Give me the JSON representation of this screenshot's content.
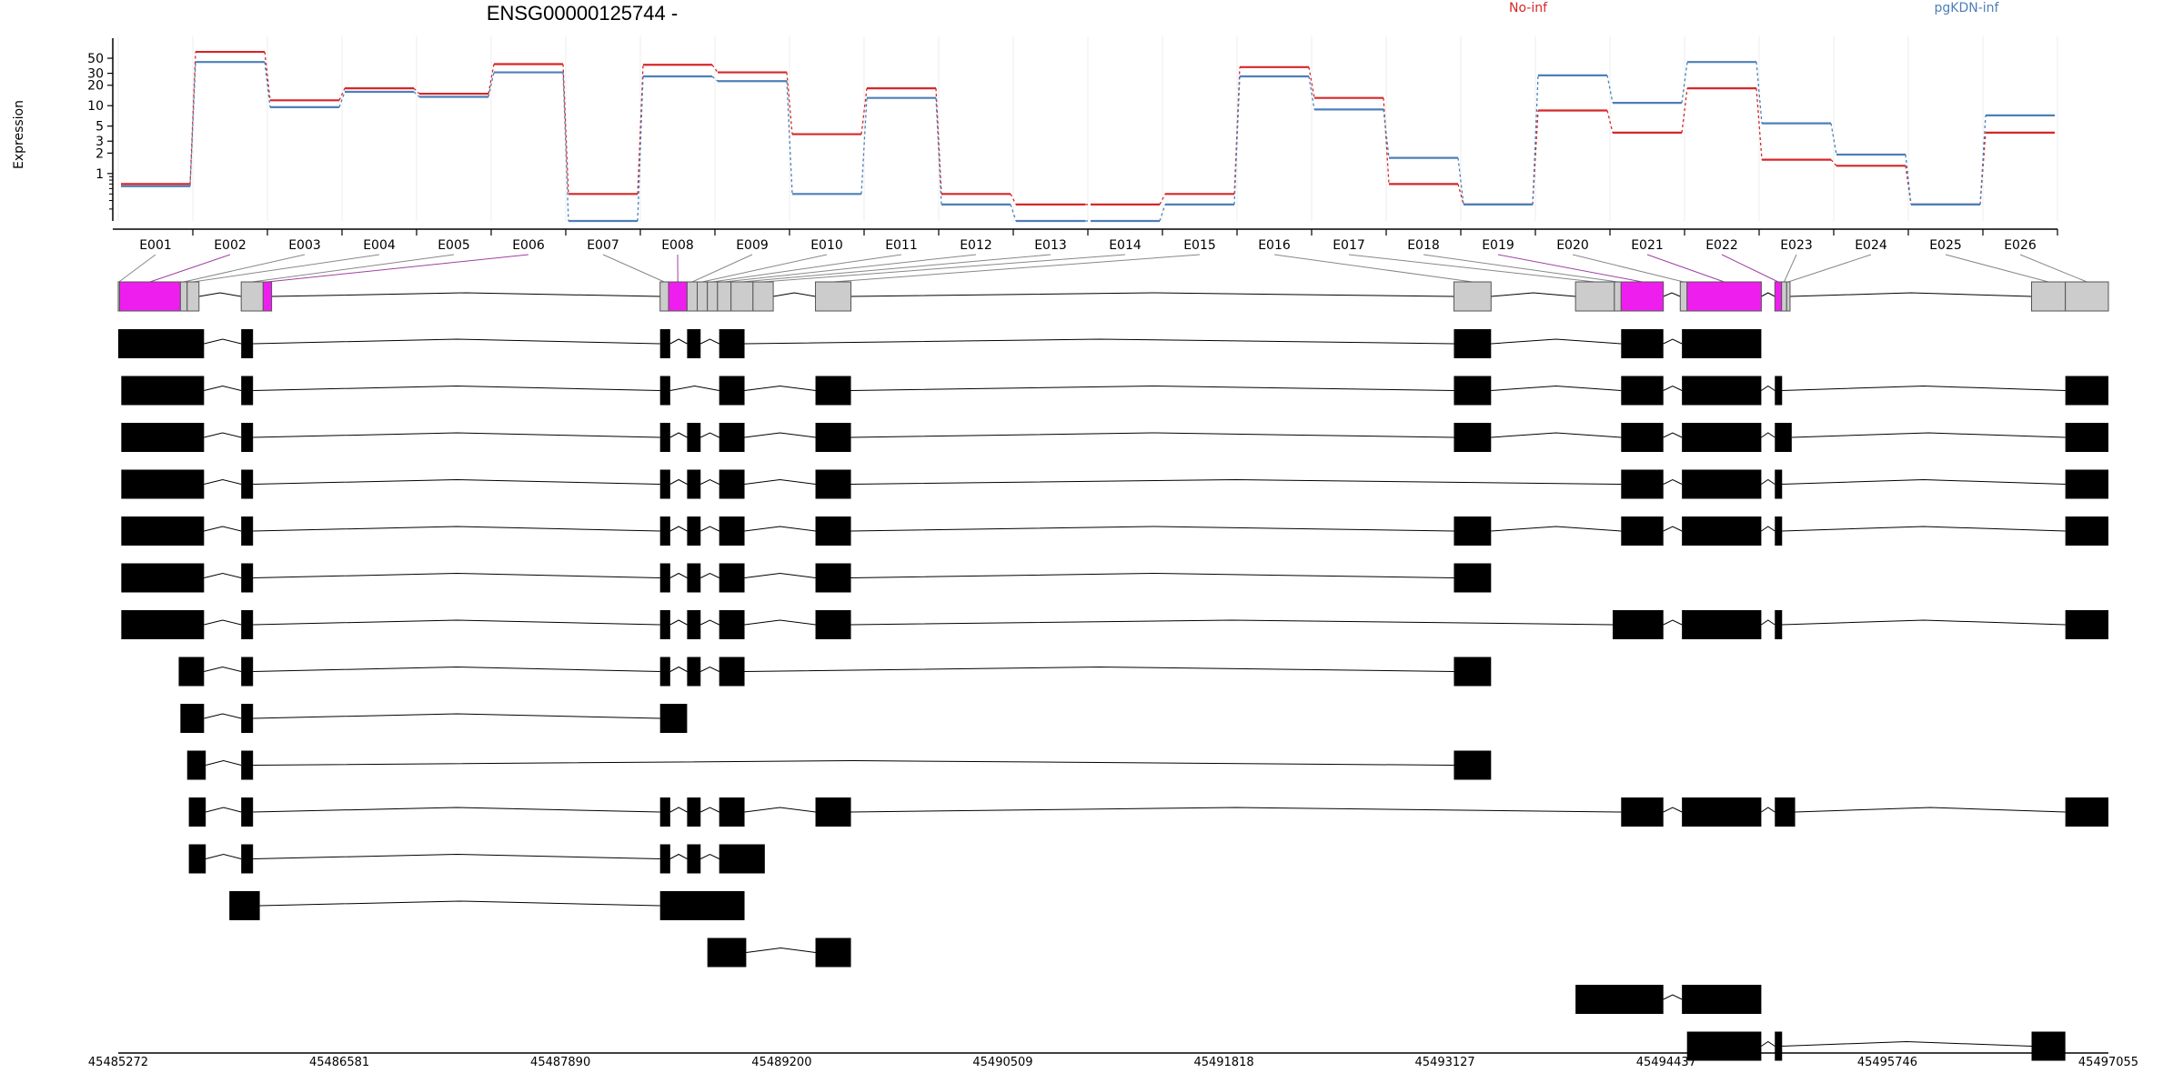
{
  "chart_data": {
    "type": "line",
    "title": "ENSG00000125744 -",
    "ylabel": "Expression",
    "y_scale": "log",
    "y_ticks": [
      "1",
      "2",
      "3",
      "5",
      "10",
      "20",
      "30",
      "50"
    ],
    "grid": true,
    "legend_placement": "top-right",
    "categories": [
      "E001",
      "E002",
      "E003",
      "E004",
      "E005",
      "E006",
      "E007",
      "E008",
      "E009",
      "E010",
      "E011",
      "E012",
      "E013",
      "E014",
      "E015",
      "E016",
      "E017",
      "E018",
      "E019",
      "E020",
      "E021",
      "E022",
      "E023",
      "E024",
      "E025",
      "E026"
    ],
    "series": [
      {
        "name": "No-inf",
        "color": "#d62728",
        "values": [
          0.7,
          62,
          12,
          18,
          15,
          41,
          0.5,
          40,
          31,
          3.8,
          18,
          0.5,
          0.35,
          0.35,
          0.5,
          37,
          13,
          0.7,
          0.35,
          8.5,
          4,
          18,
          1.6,
          1.3,
          0.35,
          4
        ]
      },
      {
        "name": "pgKDN-inf",
        "color": "#4d7fb8",
        "values": [
          0.65,
          44,
          9.5,
          16,
          13.5,
          31,
          0.2,
          27,
          23,
          0.5,
          13,
          0.35,
          0.2,
          0.2,
          0.35,
          27,
          8.8,
          1.7,
          0.35,
          28,
          11,
          44,
          5.5,
          1.9,
          0.35,
          7.2
        ]
      }
    ],
    "genomic_axis": {
      "ticks": [
        "45485272",
        "45486581",
        "45487890",
        "45489200",
        "45490509",
        "45491818",
        "45493127",
        "45494437",
        "45495746",
        "45497055"
      ],
      "range": [
        45485272,
        45497055
      ]
    },
    "exon_segments": [
      {
        "id": "E001",
        "start": 45485272,
        "end": 45485280,
        "highlight": false
      },
      {
        "id": "E002",
        "start": 45485280,
        "end": 45485640,
        "highlight": true
      },
      {
        "id": "E003",
        "start": 45485640,
        "end": 45485680,
        "highlight": false
      },
      {
        "id": "E004",
        "start": 45485680,
        "end": 45485750,
        "highlight": false
      },
      {
        "id": "E005",
        "start": 45486000,
        "end": 45486130,
        "highlight": false
      },
      {
        "id": "E006",
        "start": 45486130,
        "end": 45486180,
        "highlight": true
      },
      {
        "id": "E007",
        "start": 45488480,
        "end": 45488530,
        "highlight": false
      },
      {
        "id": "E008",
        "start": 45488530,
        "end": 45488640,
        "highlight": true
      },
      {
        "id": "E009",
        "start": 45488640,
        "end": 45488700,
        "highlight": false
      },
      {
        "id": "E010",
        "start": 45488700,
        "end": 45488760,
        "highlight": false
      },
      {
        "id": "E011",
        "start": 45488760,
        "end": 45488820,
        "highlight": false
      },
      {
        "id": "E012",
        "start": 45488820,
        "end": 45488900,
        "highlight": false
      },
      {
        "id": "E013",
        "start": 45488900,
        "end": 45489030,
        "highlight": false
      },
      {
        "id": "E014",
        "start": 45489030,
        "end": 45489150,
        "highlight": false
      },
      {
        "id": "E015",
        "start": 45489400,
        "end": 45489610,
        "highlight": false
      },
      {
        "id": "E016",
        "start": 45493180,
        "end": 45493400,
        "highlight": false
      },
      {
        "id": "E017",
        "start": 45493900,
        "end": 45494130,
        "highlight": false
      },
      {
        "id": "E018",
        "start": 45494130,
        "end": 45494170,
        "highlight": false
      },
      {
        "id": "E019",
        "start": 45494170,
        "end": 45494420,
        "highlight": true
      },
      {
        "id": "E020",
        "start": 45494520,
        "end": 45494560,
        "highlight": false
      },
      {
        "id": "E021",
        "start": 45494560,
        "end": 45495000,
        "highlight": true
      },
      {
        "id": "E022",
        "start": 45495080,
        "end": 45495120,
        "highlight": true
      },
      {
        "id": "E023",
        "start": 45495120,
        "end": 45495150,
        "highlight": false
      },
      {
        "id": "E024",
        "start": 45495150,
        "end": 45495170,
        "highlight": false
      },
      {
        "id": "E025",
        "start": 45496600,
        "end": 45496800,
        "highlight": false
      },
      {
        "id": "E026",
        "start": 45496800,
        "end": 45497055,
        "highlight": false
      }
    ],
    "transcripts": [
      [
        [
          45485272,
          45485780
        ],
        [
          45486000,
          45486070
        ],
        [
          45488480,
          45488540
        ],
        [
          45488640,
          45488720
        ],
        [
          45488830,
          45488980
        ],
        [
          45493180,
          45493400
        ],
        [
          45494170,
          45494420
        ],
        [
          45494530,
          45495000
        ]
      ],
      [
        [
          45485290,
          45485780
        ],
        [
          45486000,
          45486070
        ],
        [
          45488480,
          45488540
        ],
        [
          45488830,
          45488980
        ],
        [
          45489400,
          45489610
        ],
        [
          45493180,
          45493400
        ],
        [
          45494170,
          45494420
        ],
        [
          45494530,
          45495000
        ],
        [
          45495080,
          45495120
        ],
        [
          45496800,
          45497055
        ]
      ],
      [
        [
          45485290,
          45485780
        ],
        [
          45486000,
          45486070
        ],
        [
          45488480,
          45488540
        ],
        [
          45488640,
          45488720
        ],
        [
          45488830,
          45488980
        ],
        [
          45489400,
          45489610
        ],
        [
          45493180,
          45493400
        ],
        [
          45494170,
          45494420
        ],
        [
          45494530,
          45495000
        ],
        [
          45495080,
          45495180
        ],
        [
          45496800,
          45497055
        ]
      ],
      [
        [
          45485290,
          45485780
        ],
        [
          45486000,
          45486070
        ],
        [
          45488480,
          45488540
        ],
        [
          45488640,
          45488720
        ],
        [
          45488830,
          45488980
        ],
        [
          45489400,
          45489610
        ],
        [
          45494170,
          45494420
        ],
        [
          45494530,
          45495000
        ],
        [
          45495080,
          45495120
        ],
        [
          45496800,
          45497055
        ]
      ],
      [
        [
          45485290,
          45485780
        ],
        [
          45486000,
          45486070
        ],
        [
          45488480,
          45488540
        ],
        [
          45488640,
          45488720
        ],
        [
          45488830,
          45488980
        ],
        [
          45489400,
          45489610
        ],
        [
          45493180,
          45493400
        ],
        [
          45494170,
          45494420
        ],
        [
          45494530,
          45495000
        ],
        [
          45495080,
          45495120
        ],
        [
          45496800,
          45497055
        ]
      ],
      [
        [
          45485290,
          45485780
        ],
        [
          45486000,
          45486070
        ],
        [
          45488480,
          45488540
        ],
        [
          45488640,
          45488720
        ],
        [
          45488830,
          45488980
        ],
        [
          45489400,
          45489610
        ],
        [
          45493180,
          45493400
        ]
      ],
      [
        [
          45485290,
          45485780
        ],
        [
          45486000,
          45486070
        ],
        [
          45488480,
          45488540
        ],
        [
          45488640,
          45488720
        ],
        [
          45488830,
          45488980
        ],
        [
          45489400,
          45489610
        ],
        [
          45494120,
          45494420
        ],
        [
          45494530,
          45495000
        ],
        [
          45495080,
          45495120
        ],
        [
          45496800,
          45497055
        ]
      ],
      [
        [
          45485630,
          45485780
        ],
        [
          45486000,
          45486070
        ],
        [
          45488480,
          45488540
        ],
        [
          45488640,
          45488720
        ],
        [
          45488830,
          45488980
        ],
        [
          45493180,
          45493400
        ]
      ],
      [
        [
          45485640,
          45485780
        ],
        [
          45486000,
          45486070
        ],
        [
          45488480,
          45488640
        ]
      ],
      [
        [
          45485680,
          45485790
        ],
        [
          45486000,
          45486070
        ],
        [
          45493180,
          45493400
        ]
      ],
      [
        [
          45485690,
          45485790
        ],
        [
          45486000,
          45486070
        ],
        [
          45488480,
          45488540
        ],
        [
          45488640,
          45488720
        ],
        [
          45488830,
          45488980
        ],
        [
          45489400,
          45489610
        ],
        [
          45494170,
          45494420
        ],
        [
          45494530,
          45495000
        ],
        [
          45495080,
          45495200
        ],
        [
          45496800,
          45497055
        ]
      ],
      [
        [
          45485690,
          45485790
        ],
        [
          45486000,
          45486070
        ],
        [
          45488480,
          45488540
        ],
        [
          45488640,
          45488720
        ],
        [
          45488830,
          45489100
        ]
      ],
      [
        [
          45485930,
          45486110
        ],
        [
          45488480,
          45488980
        ]
      ],
      [
        [
          45488760,
          45488990
        ],
        [
          45489400,
          45489610
        ]
      ],
      [
        [
          45493900,
          45494420
        ],
        [
          45494530,
          45495000
        ]
      ],
      [
        [
          45494560,
          45495000
        ],
        [
          45495080,
          45495120
        ],
        [
          45496600,
          45496800
        ]
      ]
    ]
  }
}
